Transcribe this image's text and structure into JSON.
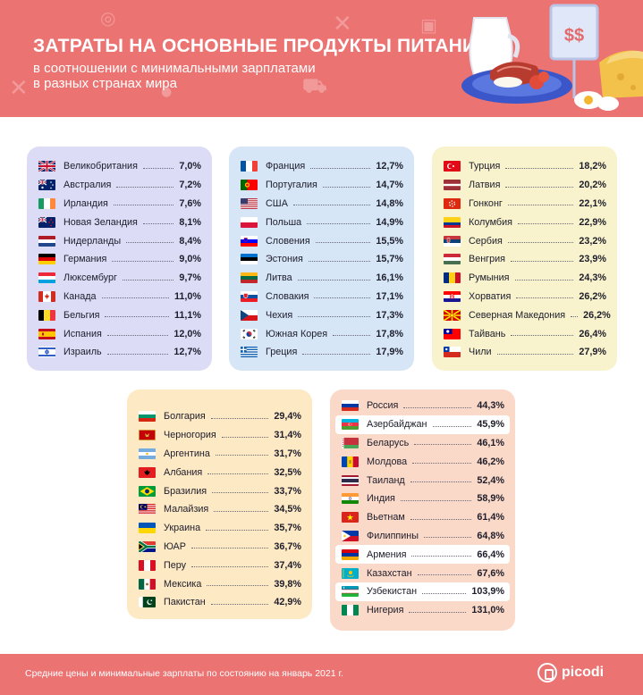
{
  "header": {
    "title": "ЗАТРАТЫ НА ОСНОВНЫЕ ПРОДУКТЫ ПИТАНИЯ",
    "subtitle_line1": "в соотношении с минимальными зарплатами",
    "subtitle_line2": "в разных странах мира",
    "price_sign": "$$"
  },
  "colors": {
    "header_bg": "#eb7372",
    "card_blue": "#dcdcf7",
    "card_light_blue": "#d6e6f6",
    "card_yellow": "#f8f3cd",
    "card_orange": "#fde9c4",
    "card_peach": "#fbd9c8"
  },
  "groups": [
    {
      "id": "group1",
      "rows": [
        {
          "name": "Великобритания",
          "value": "7,0%",
          "flag": "gb"
        },
        {
          "name": "Австралия",
          "value": "7,2%",
          "flag": "au"
        },
        {
          "name": "Ирландия",
          "value": "7,6%",
          "flag": "ie"
        },
        {
          "name": "Новая Зеландия",
          "value": "8,1%",
          "flag": "nz"
        },
        {
          "name": "Нидерланды",
          "value": "8,4%",
          "flag": "nl"
        },
        {
          "name": "Германия",
          "value": "9,0%",
          "flag": "de"
        },
        {
          "name": "Люксембург",
          "value": "9,7%",
          "flag": "lu"
        },
        {
          "name": "Канада",
          "value": "11,0%",
          "flag": "ca"
        },
        {
          "name": "Бельгия",
          "value": "11,1%",
          "flag": "be"
        },
        {
          "name": "Испания",
          "value": "12,0%",
          "flag": "es"
        },
        {
          "name": "Израиль",
          "value": "12,7%",
          "flag": "il"
        }
      ]
    },
    {
      "id": "group2",
      "rows": [
        {
          "name": "Франция",
          "value": "12,7%",
          "flag": "fr"
        },
        {
          "name": "Португалия",
          "value": "14,7%",
          "flag": "pt"
        },
        {
          "name": "США",
          "value": "14,8%",
          "flag": "us"
        },
        {
          "name": "Польша",
          "value": "14,9%",
          "flag": "pl"
        },
        {
          "name": "Словения",
          "value": "15,5%",
          "flag": "si"
        },
        {
          "name": "Эстония",
          "value": "15,7%",
          "flag": "ee"
        },
        {
          "name": "Литва",
          "value": "16,1%",
          "flag": "lt"
        },
        {
          "name": "Словакия",
          "value": "17,1%",
          "flag": "sk"
        },
        {
          "name": "Чехия",
          "value": "17,3%",
          "flag": "cz"
        },
        {
          "name": "Южная Корея",
          "value": "17,8%",
          "flag": "kr"
        },
        {
          "name": "Греция",
          "value": "17,9%",
          "flag": "gr"
        }
      ]
    },
    {
      "id": "group3",
      "rows": [
        {
          "name": "Турция",
          "value": "18,2%",
          "flag": "tr"
        },
        {
          "name": "Латвия",
          "value": "20,2%",
          "flag": "lv"
        },
        {
          "name": "Гонконг",
          "value": "22,1%",
          "flag": "hk"
        },
        {
          "name": "Колумбия",
          "value": "22,9%",
          "flag": "co"
        },
        {
          "name": "Сербия",
          "value": "23,2%",
          "flag": "rs"
        },
        {
          "name": "Венгрия",
          "value": "23,9%",
          "flag": "hu"
        },
        {
          "name": "Румыния",
          "value": "24,3%",
          "flag": "ro"
        },
        {
          "name": "Хорватия",
          "value": "26,2%",
          "flag": "hr"
        },
        {
          "name": "Северная Македония",
          "value": "26,2%",
          "flag": "mk"
        },
        {
          "name": "Тайвань",
          "value": "26,4%",
          "flag": "tw"
        },
        {
          "name": "Чили",
          "value": "27,9%",
          "flag": "cl"
        }
      ]
    },
    {
      "id": "group4",
      "rows": [
        {
          "name": "Болгария",
          "value": "29,4%",
          "flag": "bg"
        },
        {
          "name": "Черногория",
          "value": "31,4%",
          "flag": "me"
        },
        {
          "name": "Аргентина",
          "value": "31,7%",
          "flag": "ar"
        },
        {
          "name": "Албания",
          "value": "32,5%",
          "flag": "al"
        },
        {
          "name": "Бразилия",
          "value": "33,7%",
          "flag": "br"
        },
        {
          "name": "Малайзия",
          "value": "34,5%",
          "flag": "my"
        },
        {
          "name": "Украина",
          "value": "35,7%",
          "flag": "ua"
        },
        {
          "name": "ЮАР",
          "value": "36,7%",
          "flag": "za"
        },
        {
          "name": "Перу",
          "value": "37,4%",
          "flag": "pe"
        },
        {
          "name": "Мексика",
          "value": "39,8%",
          "flag": "mx"
        },
        {
          "name": "Пакистан",
          "value": "42,9%",
          "flag": "pk"
        }
      ]
    },
    {
      "id": "group5",
      "rows": [
        {
          "name": "Россия",
          "value": "44,3%",
          "flag": "ru"
        },
        {
          "name": "Азербайджан",
          "value": "45,9%",
          "flag": "az",
          "highlight": true
        },
        {
          "name": "Беларусь",
          "value": "46,1%",
          "flag": "by"
        },
        {
          "name": "Молдова",
          "value": "46,2%",
          "flag": "md"
        },
        {
          "name": "Таиланд",
          "value": "52,4%",
          "flag": "th"
        },
        {
          "name": "Индия",
          "value": "58,9%",
          "flag": "in"
        },
        {
          "name": "Вьетнам",
          "value": "61,4%",
          "flag": "vn"
        },
        {
          "name": "Филиппины",
          "value": "64,8%",
          "flag": "ph"
        },
        {
          "name": "Армения",
          "value": "66,4%",
          "flag": "am",
          "highlight": true
        },
        {
          "name": "Казахстан",
          "value": "67,6%",
          "flag": "kz"
        },
        {
          "name": "Узбекистан",
          "value": "103,9%",
          "flag": "uz",
          "highlight": true
        },
        {
          "name": "Нигерия",
          "value": "131,0%",
          "flag": "ng"
        }
      ]
    }
  ],
  "footer": {
    "note": "Средние цены и минимальные зарплаты по состоянию на январь 2021 г.",
    "logo": "picodi"
  }
}
